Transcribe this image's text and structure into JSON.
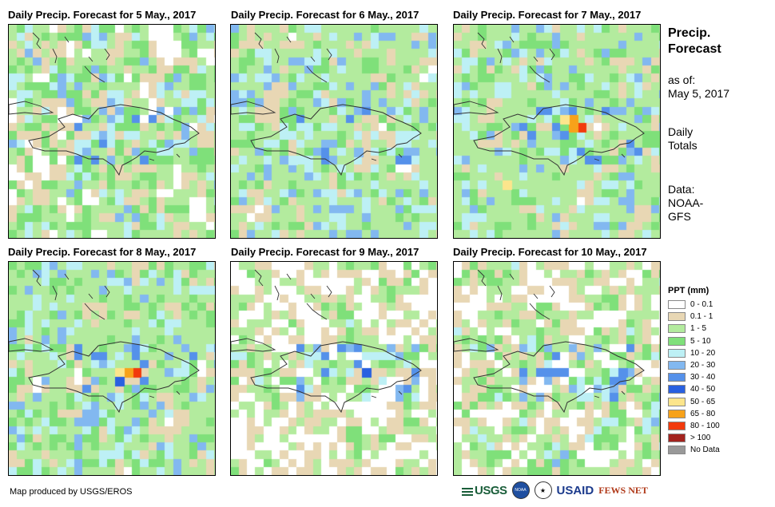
{
  "panels": [
    {
      "title": "Daily Precip. Forecast for 5 May., 2017",
      "seed": 5,
      "hot": []
    },
    {
      "title": "Daily Precip. Forecast for 6 May., 2017",
      "seed": 6,
      "hot": [
        [
          0.3,
          0.64,
          4
        ],
        [
          0.6,
          0.58,
          5
        ]
      ]
    },
    {
      "title": "Daily Precip. Forecast for 7 May., 2017",
      "seed": 7,
      "hot": [
        [
          0.6,
          0.48,
          10
        ],
        [
          0.56,
          0.43,
          9
        ],
        [
          0.25,
          0.74,
          8
        ]
      ]
    },
    {
      "title": "Daily Precip. Forecast for 8 May., 2017",
      "seed": 8,
      "hot": [
        [
          0.6,
          0.53,
          10
        ],
        [
          0.56,
          0.5,
          9
        ],
        [
          0.5,
          0.55,
          7
        ]
      ]
    },
    {
      "title": "Daily Precip. Forecast for 9 May., 2017",
      "seed": 9,
      "hot": [
        [
          0.64,
          0.5,
          7
        ]
      ]
    },
    {
      "title": "Daily Precip. Forecast for 10 May., 2017",
      "seed": 10,
      "hot": [
        [
          0.8,
          0.52,
          6
        ]
      ]
    }
  ],
  "side": {
    "title_line1": "Precip.",
    "title_line2": "Forecast",
    "asof_line1": "as of:",
    "asof_line2": "May 5, 2017",
    "totals_line1": "Daily",
    "totals_line2": "Totals",
    "data_line1": "Data:",
    "data_line2": "NOAA-",
    "data_line3": "GFS"
  },
  "legend": {
    "title": "PPT (mm)",
    "items": [
      {
        "label": "0 - 0.1",
        "color": "#ffffff"
      },
      {
        "label": "0.1 - 1",
        "color": "#e8d7b4"
      },
      {
        "label": "1 - 5",
        "color": "#b3eb9e"
      },
      {
        "label": "5 - 10",
        "color": "#7fe07a"
      },
      {
        "label": "10 - 20",
        "color": "#bdf0f5"
      },
      {
        "label": "20 - 30",
        "color": "#82b8f0"
      },
      {
        "label": "30 - 40",
        "color": "#5591ea"
      },
      {
        "label": "40 - 50",
        "color": "#2960e0"
      },
      {
        "label": "50 - 65",
        "color": "#fce58c"
      },
      {
        "label": "65 - 80",
        "color": "#f7a21a"
      },
      {
        "label": "80 - 100",
        "color": "#f23a0c"
      },
      {
        "label": "> 100",
        "color": "#a3231e"
      },
      {
        "label": "No Data",
        "color": "#999999"
      }
    ]
  },
  "credit": "Map produced by USGS/EROS",
  "logos": {
    "usgs": "USGS",
    "noaa": "NOAA",
    "usaid": "USAID",
    "fews": "FEWS NET"
  }
}
